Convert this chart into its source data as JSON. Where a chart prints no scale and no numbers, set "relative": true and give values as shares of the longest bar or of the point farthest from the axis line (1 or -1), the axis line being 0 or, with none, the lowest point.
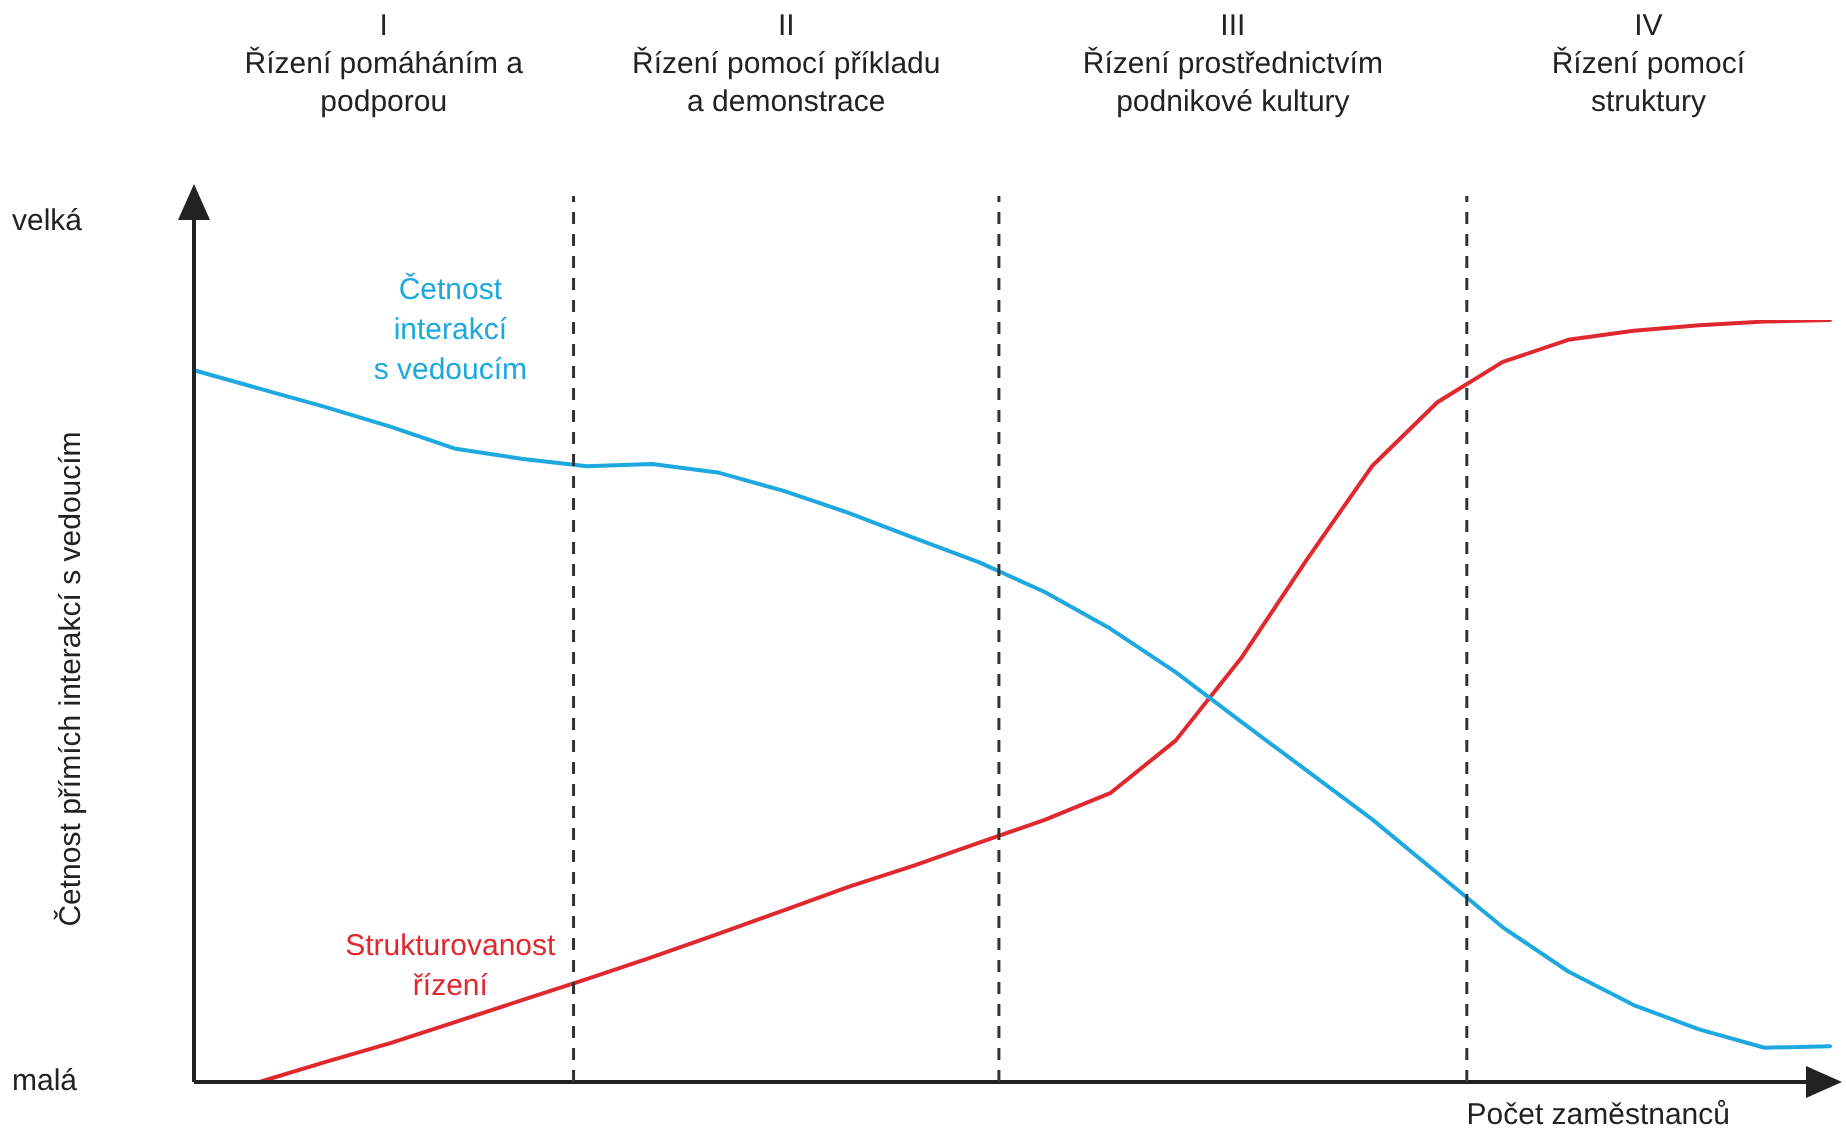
{
  "chart_data": {
    "type": "line",
    "relative": true,
    "xlabel": "Počet zaměstnanců",
    "ylabel": "Četnost přímích interakcí s vedoucím",
    "tick_labels": false,
    "grid": false,
    "legend": false,
    "marker": "none",
    "line_style": "solid",
    "categories": [
      null,
      null,
      null,
      null,
      null,
      null,
      null,
      null,
      null,
      null,
      null,
      null,
      null,
      null,
      null,
      null,
      null,
      null,
      null,
      null,
      null,
      null,
      null,
      null,
      null,
      null
    ],
    "annotations": [
      "I\nŘízení pomáháním a\npodporou",
      "II\nŘízení pomocí příkladu\na demonstrace",
      "III\nŘízení prostřednictvím\npodnikové kultury",
      "IV\nŘízení pomocí\nstruktury",
      "velká",
      "malá"
    ],
    "series": [
      {
        "name": "Četnost\ninterakcí\ns vedoucím",
        "color": "#1ea8e0",
        "values": [
          0.934,
          0.91,
          0.886,
          0.86,
          0.831,
          0.818,
          0.808,
          0.811,
          0.8,
          0.776,
          0.747,
          0.714,
          0.682,
          0.643,
          0.595,
          0.538,
          0.473,
          0.409,
          0.345,
          0.274,
          0.203,
          0.145,
          0.101,
          0.069,
          0.045,
          0.047
        ]
      },
      {
        "name": "Strukturovanost\nřízení",
        "color": "#e0282f",
        "values": [
          null,
          0,
          0.026,
          0.051,
          0.079,
          0.107,
          0.135,
          0.164,
          0.194,
          0.225,
          0.256,
          0.284,
          0.314,
          0.344,
          0.379,
          0.448,
          0.556,
          0.685,
          0.808,
          0.892,
          0.945,
          0.974,
          0.986,
          0.993,
          0.998,
          1
        ]
      }
    ]
  }
}
